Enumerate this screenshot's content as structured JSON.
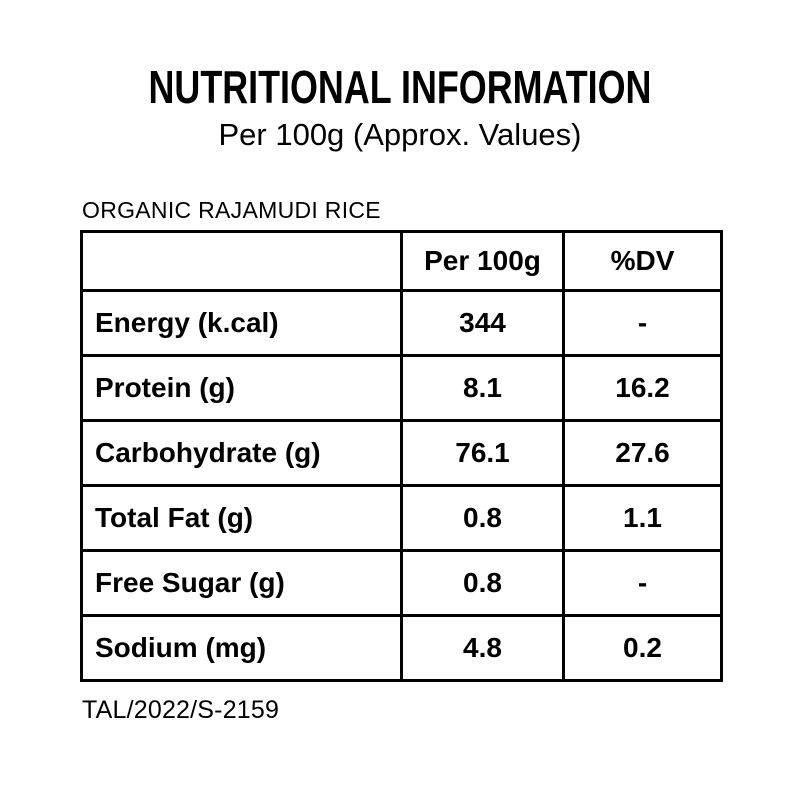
{
  "header": {
    "title": "NUTRITIONAL INFORMATION",
    "subtitle": "Per 100g (Approx. Values)"
  },
  "product": {
    "name": "ORGANIC RAJAMUDI RICE"
  },
  "table": {
    "columns": [
      "",
      "Per 100g",
      "%DV"
    ],
    "rows": [
      [
        "Energy (k.cal)",
        "344",
        "-"
      ],
      [
        "Protein (g)",
        "8.1",
        "16.2"
      ],
      [
        "Carbohydrate (g)",
        "76.1",
        "27.6"
      ],
      [
        "Total Fat (g)",
        "0.8",
        "1.1"
      ],
      [
        "Free Sugar (g)",
        "0.8",
        "-"
      ],
      [
        "Sodium (mg)",
        "4.8",
        "0.2"
      ]
    ]
  },
  "footer": {
    "code": "TAL/2022/S-2159"
  },
  "colors": {
    "background": "#ffffff",
    "text": "#000000",
    "border": "#000000"
  }
}
